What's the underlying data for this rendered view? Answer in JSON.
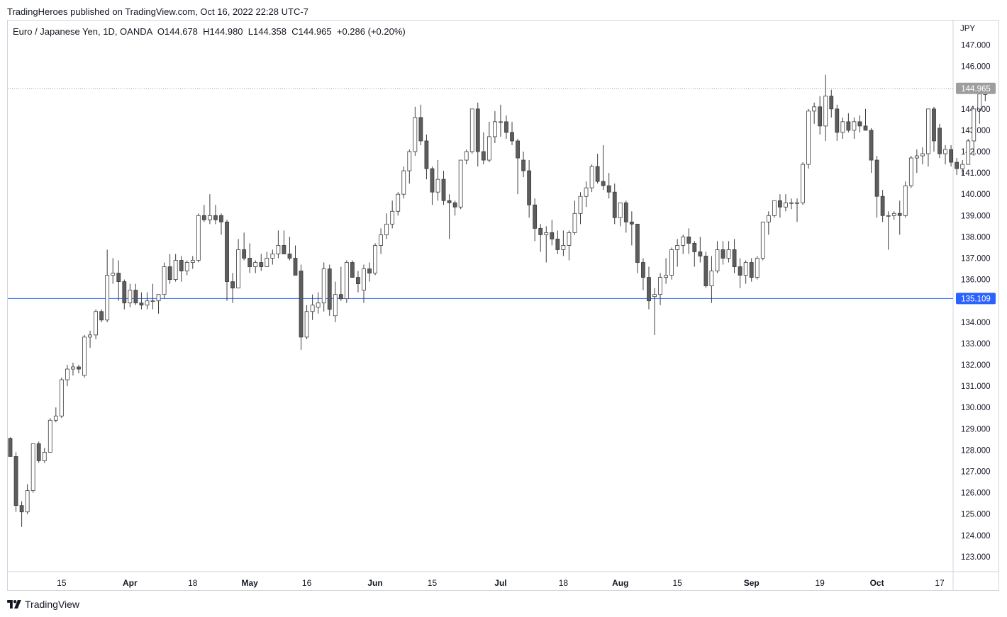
{
  "header": {
    "publisher": "TradingHeroes published on TradingView.com, Oct 16, 2022 22:28 UTC-7"
  },
  "legend": {
    "symbol": "Euro / Japanese Yen, 1D, OANDA",
    "open": "O144.678",
    "high": "H144.980",
    "low": "L144.358",
    "close": "C144.965",
    "change": "+0.286 (+0.20%)"
  },
  "footer": {
    "brand": "TradingView",
    "logo_icon": "tradingview-logo-icon"
  },
  "colors": {
    "up_fill": "#ffffff",
    "down_fill": "#5d5d5d",
    "candle_border": "#3c3c3c",
    "support_line": "#2962ff",
    "last_price_badge": "#9e9e9e",
    "last_price_line": "#9e9e9e"
  },
  "chart_data": {
    "type": "candlestick",
    "symbol": "Euro / Japanese Yen",
    "interval": "1D",
    "source": "OANDA",
    "currency_label": "JPY",
    "ylim": [
      122.3,
      148.1
    ],
    "y_ticks": [
      "147.000",
      "146.000",
      "145.000",
      "144.000",
      "143.000",
      "142.000",
      "141.000",
      "140.000",
      "139.000",
      "138.000",
      "137.000",
      "136.000",
      "135.000",
      "134.000",
      "133.000",
      "132.000",
      "131.000",
      "130.000",
      "129.000",
      "128.000",
      "127.000",
      "126.000",
      "125.000",
      "124.000",
      "123.000"
    ],
    "x_ticks": [
      {
        "label": "15",
        "index": 9,
        "month": false
      },
      {
        "label": "Apr",
        "index": 21,
        "month": true
      },
      {
        "label": "18",
        "index": 32,
        "month": false
      },
      {
        "label": "May",
        "index": 42,
        "month": true
      },
      {
        "label": "16",
        "index": 52,
        "month": false
      },
      {
        "label": "Jun",
        "index": 64,
        "month": true
      },
      {
        "label": "15",
        "index": 74,
        "month": false
      },
      {
        "label": "Jul",
        "index": 86,
        "month": true
      },
      {
        "label": "18",
        "index": 97,
        "month": false
      },
      {
        "label": "Aug",
        "index": 107,
        "month": true
      },
      {
        "label": "15",
        "index": 117,
        "month": false
      },
      {
        "label": "Sep",
        "index": 130,
        "month": true
      },
      {
        "label": "19",
        "index": 142,
        "month": false
      },
      {
        "label": "Oct",
        "index": 152,
        "month": true
      },
      {
        "label": "17",
        "index": 163,
        "month": false
      }
    ],
    "horizontal_line": {
      "value": 135.109,
      "label": "135.109"
    },
    "last_price": {
      "value": 144.965,
      "label": "144.965"
    },
    "grid": false,
    "legend_position": "top-left",
    "candles": [
      [
        128.55,
        128.6,
        127.7,
        127.7
      ],
      [
        127.7,
        127.9,
        125.1,
        125.4
      ],
      [
        125.4,
        125.6,
        124.4,
        125.1
      ],
      [
        125.1,
        126.4,
        125.0,
        126.1
      ],
      [
        126.1,
        128.3,
        126.0,
        128.3
      ],
      [
        128.3,
        128.4,
        127.4,
        127.5
      ],
      [
        127.5,
        128.1,
        127.4,
        127.9
      ],
      [
        127.9,
        129.5,
        127.9,
        129.4
      ],
      [
        129.4,
        130.0,
        129.3,
        129.6
      ],
      [
        129.6,
        131.4,
        129.5,
        131.3
      ],
      [
        131.3,
        132.0,
        131.0,
        131.8
      ],
      [
        131.8,
        132.1,
        131.5,
        131.9
      ],
      [
        131.9,
        132.0,
        131.6,
        131.8
      ],
      [
        131.5,
        133.4,
        131.4,
        133.3
      ],
      [
        133.3,
        133.6,
        132.8,
        133.4
      ],
      [
        133.4,
        134.6,
        133.2,
        134.5
      ],
      [
        134.5,
        134.6,
        134.0,
        134.1
      ],
      [
        134.1,
        137.4,
        134.0,
        136.2
      ],
      [
        136.2,
        137.0,
        135.8,
        136.3
      ],
      [
        136.3,
        136.9,
        135.0,
        135.9
      ],
      [
        135.9,
        136.0,
        134.6,
        134.9
      ],
      [
        134.9,
        135.8,
        134.7,
        135.5
      ],
      [
        135.5,
        135.8,
        134.8,
        134.9
      ],
      [
        134.9,
        135.4,
        134.6,
        134.8
      ],
      [
        134.8,
        135.4,
        134.6,
        135.0
      ],
      [
        135.0,
        135.8,
        134.6,
        135.0
      ],
      [
        135.0,
        135.3,
        134.4,
        135.3
      ],
      [
        135.3,
        136.8,
        135.1,
        136.6
      ],
      [
        136.6,
        137.2,
        135.8,
        136.0
      ],
      [
        136.0,
        137.2,
        135.9,
        136.9
      ],
      [
        136.9,
        137.1,
        135.9,
        136.4
      ],
      [
        136.4,
        136.9,
        136.2,
        136.8
      ],
      [
        136.8,
        137.1,
        136.5,
        136.9
      ],
      [
        136.9,
        139.1,
        136.8,
        139.0
      ],
      [
        139.0,
        139.5,
        138.7,
        138.8
      ],
      [
        138.8,
        140.0,
        138.6,
        139.0
      ],
      [
        139.0,
        139.5,
        138.6,
        138.8
      ],
      [
        139.0,
        139.1,
        138.1,
        138.7
      ],
      [
        138.7,
        138.8,
        135.0,
        135.9
      ],
      [
        135.9,
        136.3,
        134.9,
        135.6
      ],
      [
        135.6,
        137.9,
        135.6,
        137.4
      ],
      [
        137.4,
        138.2,
        136.9,
        137.0
      ],
      [
        137.0,
        137.7,
        136.3,
        136.6
      ],
      [
        136.6,
        136.9,
        136.3,
        136.8
      ],
      [
        136.8,
        137.2,
        136.4,
        136.6
      ],
      [
        136.6,
        137.3,
        136.6,
        137.0
      ],
      [
        137.0,
        137.4,
        136.7,
        137.2
      ],
      [
        137.2,
        138.3,
        137.0,
        137.6
      ],
      [
        137.6,
        138.3,
        137.2,
        137.2
      ],
      [
        137.2,
        138.0,
        136.9,
        137.0
      ],
      [
        137.0,
        137.6,
        136.2,
        136.2
      ],
      [
        136.4,
        136.7,
        132.7,
        133.3
      ],
      [
        133.3,
        134.8,
        133.2,
        134.5
      ],
      [
        134.5,
        135.3,
        134.1,
        134.8
      ],
      [
        134.7,
        135.4,
        134.4,
        134.9
      ],
      [
        134.9,
        136.8,
        134.5,
        136.5
      ],
      [
        136.5,
        136.7,
        134.3,
        134.6
      ],
      [
        134.3,
        135.9,
        134.0,
        135.3
      ],
      [
        135.3,
        136.6,
        135.0,
        135.1
      ],
      [
        135.1,
        136.9,
        134.9,
        136.8
      ],
      [
        136.8,
        136.9,
        136.1,
        136.1
      ],
      [
        136.1,
        136.4,
        135.4,
        135.8
      ],
      [
        135.5,
        136.7,
        134.9,
        136.5
      ],
      [
        136.5,
        136.8,
        135.9,
        136.3
      ],
      [
        136.3,
        137.7,
        136.2,
        137.6
      ],
      [
        137.6,
        138.4,
        137.2,
        138.1
      ],
      [
        138.1,
        139.1,
        137.9,
        138.6
      ],
      [
        138.6,
        139.7,
        138.4,
        139.2
      ],
      [
        139.2,
        140.1,
        139.0,
        140.0
      ],
      [
        140.0,
        141.3,
        139.8,
        141.1
      ],
      [
        141.1,
        142.1,
        140.5,
        142.0
      ],
      [
        142.0,
        144.1,
        141.8,
        143.6
      ],
      [
        143.6,
        144.2,
        142.3,
        142.5
      ],
      [
        142.5,
        142.8,
        140.7,
        141.2
      ],
      [
        141.2,
        141.3,
        139.5,
        140.1
      ],
      [
        140.1,
        141.6,
        139.7,
        140.7
      ],
      [
        140.7,
        141.1,
        139.5,
        139.7
      ],
      [
        139.7,
        140.0,
        137.9,
        139.6
      ],
      [
        139.6,
        139.7,
        139.0,
        139.4
      ],
      [
        139.4,
        141.6,
        139.3,
        141.6
      ],
      [
        141.6,
        142.1,
        141.4,
        142.0
      ],
      [
        142.0,
        144.0,
        141.9,
        144.0
      ],
      [
        144.0,
        144.3,
        141.3,
        142.0
      ],
      [
        142.0,
        142.9,
        141.4,
        141.6
      ],
      [
        141.6,
        143.4,
        141.5,
        142.7
      ],
      [
        142.7,
        143.9,
        142.4,
        143.4
      ],
      [
        143.4,
        144.2,
        142.7,
        143.4
      ],
      [
        143.4,
        143.7,
        142.6,
        142.9
      ],
      [
        142.9,
        143.4,
        142.3,
        142.5
      ],
      [
        142.5,
        142.6,
        140.0,
        141.7
      ],
      [
        141.6,
        142.0,
        140.8,
        141.1
      ],
      [
        141.1,
        141.6,
        138.9,
        139.5
      ],
      [
        139.5,
        139.8,
        137.8,
        138.4
      ],
      [
        138.4,
        138.6,
        137.3,
        138.1
      ],
      [
        138.1,
        138.5,
        136.8,
        138.2
      ],
      [
        138.2,
        138.8,
        137.6,
        137.9
      ],
      [
        137.9,
        138.3,
        137.2,
        137.4
      ],
      [
        137.4,
        138.3,
        137.1,
        137.6
      ],
      [
        137.6,
        138.3,
        136.9,
        138.2
      ],
      [
        138.2,
        139.7,
        138.1,
        139.1
      ],
      [
        139.1,
        140.1,
        138.6,
        139.9
      ],
      [
        139.9,
        140.6,
        139.4,
        140.3
      ],
      [
        140.3,
        141.4,
        140.1,
        141.3
      ],
      [
        141.3,
        141.9,
        140.5,
        140.6
      ],
      [
        140.6,
        142.3,
        140.2,
        140.4
      ],
      [
        140.4,
        141.0,
        139.8,
        140.1
      ],
      [
        140.1,
        140.5,
        138.6,
        138.9
      ],
      [
        138.9,
        139.6,
        138.5,
        139.6
      ],
      [
        139.6,
        139.7,
        138.2,
        138.7
      ],
      [
        138.7,
        139.2,
        137.6,
        138.6
      ],
      [
        138.6,
        138.6,
        136.3,
        136.8
      ],
      [
        136.8,
        137.0,
        135.5,
        136.1
      ],
      [
        136.1,
        136.6,
        134.6,
        135.0
      ],
      [
        135.2,
        135.6,
        133.4,
        135.3
      ],
      [
        135.3,
        136.3,
        134.8,
        136.1
      ],
      [
        136.1,
        137.0,
        135.8,
        136.2
      ],
      [
        136.2,
        137.5,
        136.0,
        137.4
      ],
      [
        137.4,
        137.9,
        136.6,
        137.6
      ],
      [
        137.6,
        138.1,
        137.2,
        138.0
      ],
      [
        138.0,
        138.4,
        137.2,
        137.7
      ],
      [
        137.7,
        137.8,
        136.6,
        137.3
      ],
      [
        137.3,
        138.0,
        136.8,
        137.1
      ],
      [
        137.1,
        137.3,
        135.6,
        135.7
      ],
      [
        135.7,
        137.1,
        134.9,
        136.4
      ],
      [
        136.4,
        137.8,
        136.3,
        137.4
      ],
      [
        137.4,
        137.8,
        136.7,
        137.0
      ],
      [
        137.0,
        137.8,
        136.8,
        137.4
      ],
      [
        137.4,
        137.9,
        136.3,
        136.6
      ],
      [
        136.6,
        137.0,
        135.6,
        136.2
      ],
      [
        136.2,
        136.9,
        135.8,
        136.8
      ],
      [
        136.8,
        137.0,
        135.9,
        136.1
      ],
      [
        136.1,
        137.1,
        136.0,
        137.0
      ],
      [
        137.0,
        138.7,
        136.9,
        138.7
      ],
      [
        138.7,
        139.2,
        138.1,
        139.0
      ],
      [
        139.0,
        139.7,
        138.9,
        139.7
      ],
      [
        139.7,
        140.0,
        138.9,
        139.4
      ],
      [
        139.4,
        140.0,
        139.2,
        139.6
      ],
      [
        139.6,
        139.8,
        139.3,
        139.6
      ],
      [
        139.6,
        139.8,
        138.7,
        139.6
      ],
      [
        139.6,
        141.5,
        139.5,
        141.4
      ],
      [
        141.4,
        144.0,
        141.2,
        143.9
      ],
      [
        143.9,
        144.3,
        143.3,
        144.1
      ],
      [
        144.1,
        144.6,
        142.8,
        143.2
      ],
      [
        143.2,
        145.6,
        142.5,
        144.6
      ],
      [
        144.6,
        144.9,
        143.6,
        144.0
      ],
      [
        144.0,
        144.2,
        142.5,
        142.9
      ],
      [
        142.9,
        143.6,
        142.6,
        143.4
      ],
      [
        143.4,
        143.8,
        142.9,
        143.0
      ],
      [
        143.0,
        143.6,
        142.6,
        143.4
      ],
      [
        143.4,
        143.7,
        142.9,
        143.2
      ],
      [
        143.2,
        144.0,
        143.0,
        143.0
      ],
      [
        143.0,
        143.1,
        141.0,
        141.6
      ],
      [
        141.6,
        141.8,
        138.9,
        139.9
      ],
      [
        139.9,
        140.2,
        138.7,
        139.0
      ],
      [
        139.0,
        139.2,
        137.4,
        139.0
      ],
      [
        139.0,
        139.2,
        138.8,
        139.1
      ],
      [
        139.1,
        139.7,
        138.1,
        139.0
      ],
      [
        139.0,
        140.6,
        138.9,
        140.4
      ],
      [
        140.4,
        141.8,
        140.3,
        141.7
      ],
      [
        141.7,
        142.1,
        141.0,
        141.8
      ],
      [
        141.8,
        142.2,
        141.4,
        141.9
      ],
      [
        141.9,
        144.0,
        141.3,
        144.0
      ],
      [
        144.0,
        144.1,
        142.0,
        142.5
      ],
      [
        143.1,
        143.3,
        141.7,
        141.9
      ],
      [
        141.9,
        142.3,
        141.4,
        142.1
      ],
      [
        142.1,
        142.3,
        141.3,
        141.5
      ],
      [
        141.5,
        141.7,
        140.9,
        141.2
      ],
      [
        141.2,
        141.6,
        140.9,
        141.4
      ],
      [
        141.4,
        142.6,
        141.4,
        142.5
      ],
      [
        142.5,
        144.0,
        141.8,
        144.0
      ],
      [
        144.0,
        144.8,
        143.3,
        144.7
      ],
      [
        144.678,
        144.98,
        144.358,
        144.965
      ]
    ]
  }
}
